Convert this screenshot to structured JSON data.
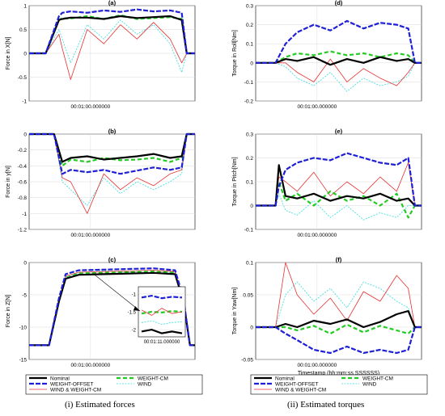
{
  "figure": {
    "captions": [
      "(i) Estimated forces",
      "(ii) Estimated torques"
    ],
    "x_tick_label": "00:01:00.000000",
    "x_label": "Timestamp (hh:mm:ss.SSSSSS)"
  },
  "legend": {
    "entries": [
      "Nominal",
      "WEIGHT-CM",
      "WEIGHT-OFFSET",
      "WIND",
      "WIND & WEIGHT-CM"
    ]
  },
  "colors": {
    "Nominal": "#000000",
    "WEIGHT-CM": "#22cc22",
    "WEIGHT-OFFSET": "#1f1fd6",
    "WIND": "#33dddd",
    "WIND & WEIGHT-CM": "#e83030"
  },
  "chart_data": [
    {
      "type": "line",
      "title": "(a)",
      "ylabel": "Force in X[N]",
      "xlabel": "",
      "ylim": [
        -1,
        1
      ],
      "yticks": [
        -1,
        -0.5,
        0,
        0.5,
        1
      ],
      "grid": true,
      "x": [
        0,
        0.1,
        0.18,
        0.2,
        0.25,
        0.35,
        0.45,
        0.55,
        0.65,
        0.75,
        0.85,
        0.92,
        0.95,
        1.0
      ],
      "series": [
        {
          "name": "Nominal",
          "values": [
            0,
            0,
            0.7,
            0.72,
            0.75,
            0.75,
            0.72,
            0.78,
            0.74,
            0.76,
            0.78,
            0.7,
            0,
            0
          ]
        },
        {
          "name": "WEIGHT-CM",
          "values": [
            0,
            0,
            0.7,
            0.74,
            0.73,
            0.78,
            0.72,
            0.8,
            0.72,
            0.74,
            0.76,
            0.72,
            0,
            0
          ]
        },
        {
          "name": "WEIGHT-OFFSET",
          "values": [
            0,
            0,
            0.78,
            0.85,
            0.88,
            0.85,
            0.9,
            0.87,
            0.92,
            0.88,
            0.9,
            0.85,
            0,
            0
          ]
        },
        {
          "name": "WIND",
          "values": [
            0,
            0,
            0.5,
            0.3,
            -0.2,
            0.6,
            0.3,
            0.7,
            0.4,
            0.6,
            0.2,
            -0.4,
            0,
            0
          ]
        },
        {
          "name": "WIND & WEIGHT-CM",
          "values": [
            0,
            0,
            0.4,
            0.1,
            -0.55,
            0.5,
            0.2,
            0.6,
            0.3,
            0.65,
            0.3,
            -0.2,
            0,
            0
          ]
        }
      ]
    },
    {
      "type": "line",
      "title": "(b)",
      "ylabel": "Force in y[N]",
      "xlabel": "",
      "ylim": [
        -1.2,
        0
      ],
      "yticks": [
        -1.2,
        -1,
        -0.8,
        -0.6,
        -0.4,
        -0.2,
        0
      ],
      "grid": true,
      "x": [
        0,
        0.15,
        0.2,
        0.25,
        0.35,
        0.45,
        0.55,
        0.65,
        0.75,
        0.85,
        0.92,
        0.95,
        1.0
      ],
      "series": [
        {
          "name": "Nominal",
          "values": [
            0,
            0,
            -0.35,
            -0.3,
            -0.28,
            -0.32,
            -0.3,
            -0.28,
            -0.25,
            -0.3,
            -0.28,
            0,
            0
          ]
        },
        {
          "name": "WEIGHT-CM",
          "values": [
            0,
            0,
            -0.4,
            -0.32,
            -0.35,
            -0.3,
            -0.33,
            -0.32,
            -0.3,
            -0.35,
            -0.3,
            0,
            0
          ]
        },
        {
          "name": "WEIGHT-OFFSET",
          "values": [
            0,
            0,
            -0.5,
            -0.45,
            -0.48,
            -0.45,
            -0.5,
            -0.46,
            -0.42,
            -0.45,
            -0.42,
            0,
            0
          ]
        },
        {
          "name": "WIND",
          "values": [
            0,
            0,
            -0.6,
            -0.7,
            -0.9,
            -0.55,
            -0.75,
            -0.6,
            -0.7,
            -0.6,
            -0.5,
            0,
            0
          ]
        },
        {
          "name": "WIND & WEIGHT-CM",
          "values": [
            0,
            0,
            -0.55,
            -0.6,
            -1.0,
            -0.5,
            -0.7,
            -0.55,
            -0.65,
            -0.5,
            -0.45,
            0,
            0
          ]
        }
      ]
    },
    {
      "type": "line",
      "title": "(c)",
      "ylabel": "Force in Z[N]",
      "xlabel": "",
      "ylim": [
        -15,
        0
      ],
      "yticks": [
        -15,
        -10,
        -5,
        0
      ],
      "grid": true,
      "x": [
        0,
        0.12,
        0.18,
        0.22,
        0.3,
        0.45,
        0.6,
        0.75,
        0.88,
        0.93,
        0.97,
        1.0
      ],
      "series": [
        {
          "name": "Nominal",
          "values": [
            -12.8,
            -12.8,
            -6,
            -2.5,
            -1.9,
            -1.8,
            -1.7,
            -1.6,
            -1.8,
            -6,
            -12.8,
            -12.8
          ]
        },
        {
          "name": "WEIGHT-CM",
          "values": [
            -12.8,
            -12.8,
            -6,
            -2.4,
            -1.7,
            -1.6,
            -1.5,
            -1.4,
            -1.6,
            -6,
            -12.8,
            -12.8
          ]
        },
        {
          "name": "WEIGHT-OFFSET",
          "values": [
            -12.8,
            -12.8,
            -5.5,
            -1.8,
            -1.2,
            -1.1,
            -1.0,
            -0.9,
            -1.2,
            -5.5,
            -12.8,
            -12.8
          ]
        },
        {
          "name": "WIND",
          "values": [
            -12.8,
            -12.8,
            -6,
            -2.2,
            -1.5,
            -1.3,
            -1.4,
            -1.2,
            -1.5,
            -6,
            -12.8,
            -12.8
          ]
        },
        {
          "name": "WIND & WEIGHT-CM",
          "values": [
            -12.8,
            -12.8,
            -6,
            -2.1,
            -1.5,
            -1.4,
            -1.3,
            -1.2,
            -1.4,
            -6,
            -12.8,
            -12.8
          ]
        }
      ],
      "inset": {
        "x_tick_label": "00:01:11.000000",
        "yticks": [
          -2,
          -1.5,
          -1
        ],
        "ylim": [
          -2.2,
          -0.8
        ],
        "series": [
          {
            "name": "Nominal",
            "values": [
              -2.05,
              -2.0,
              -2.1,
              -2.05,
              -2.1
            ]
          },
          {
            "name": "WEIGHT-CM",
            "values": [
              -1.55,
              -1.5,
              -1.52,
              -1.48,
              -1.5
            ]
          },
          {
            "name": "WEIGHT-OFFSET",
            "values": [
              -1.1,
              -1.05,
              -1.12,
              -1.08,
              -1.1
            ]
          },
          {
            "name": "WIND",
            "values": [
              -1.8,
              -1.75,
              -1.85,
              -1.8,
              -1.78
            ]
          },
          {
            "name": "WIND & WEIGHT-CM",
            "values": [
              -1.45,
              -1.6,
              -1.4,
              -1.55,
              -1.5
            ]
          }
        ]
      }
    },
    {
      "type": "line",
      "title": "(d)",
      "ylabel": "Torque in Roll[Nm]",
      "xlabel": "",
      "ylim": [
        -0.2,
        0.3
      ],
      "yticks": [
        -0.2,
        -0.1,
        0,
        0.1,
        0.2,
        0.3
      ],
      "grid": true,
      "x": [
        0,
        0.12,
        0.18,
        0.25,
        0.35,
        0.45,
        0.55,
        0.65,
        0.75,
        0.85,
        0.92,
        0.96,
        1.0
      ],
      "series": [
        {
          "name": "Nominal",
          "values": [
            0,
            0,
            0.02,
            0.01,
            0.03,
            -0.01,
            0.02,
            0.0,
            0.03,
            0.01,
            0.02,
            0,
            0
          ]
        },
        {
          "name": "WEIGHT-CM",
          "values": [
            0,
            0,
            0.03,
            0.05,
            0.04,
            0.06,
            0.04,
            0.05,
            0.03,
            0.05,
            0.04,
            0,
            0
          ]
        },
        {
          "name": "WEIGHT-OFFSET",
          "values": [
            0,
            0,
            0.1,
            0.16,
            0.2,
            0.17,
            0.22,
            0.18,
            0.21,
            0.2,
            0.18,
            0,
            0
          ]
        },
        {
          "name": "WIND",
          "values": [
            0,
            0,
            -0.02,
            -0.08,
            -0.12,
            -0.05,
            -0.15,
            -0.08,
            -0.12,
            -0.1,
            -0.07,
            0,
            0
          ]
        },
        {
          "name": "WIND & WEIGHT-CM",
          "values": [
            0,
            0,
            0.0,
            -0.05,
            -0.1,
            0.02,
            -0.1,
            -0.03,
            -0.08,
            -0.12,
            -0.05,
            0,
            0
          ]
        }
      ]
    },
    {
      "type": "line",
      "title": "(e)",
      "ylabel": "Torque in Pitch[Nm]",
      "xlabel": "",
      "ylim": [
        -0.1,
        0.3
      ],
      "yticks": [
        -0.1,
        0,
        0.1,
        0.2,
        0.3
      ],
      "grid": true,
      "x": [
        0,
        0.12,
        0.14,
        0.18,
        0.25,
        0.35,
        0.45,
        0.55,
        0.65,
        0.75,
        0.85,
        0.92,
        0.96,
        1.0
      ],
      "series": [
        {
          "name": "Nominal",
          "values": [
            0,
            0,
            0.17,
            0.04,
            0.03,
            0.05,
            0.02,
            0.04,
            0.03,
            0.05,
            0.02,
            0.03,
            0,
            0
          ]
        },
        {
          "name": "WEIGHT-CM",
          "values": [
            0,
            0,
            0.1,
            0.02,
            0.05,
            0.0,
            0.06,
            0.02,
            0.04,
            0.0,
            0.05,
            -0.05,
            0,
            0
          ]
        },
        {
          "name": "WEIGHT-OFFSET",
          "values": [
            0,
            0,
            0.08,
            0.15,
            0.18,
            0.2,
            0.19,
            0.22,
            0.2,
            0.18,
            0.17,
            0.2,
            0,
            0
          ]
        },
        {
          "name": "WIND",
          "values": [
            0,
            0,
            0.05,
            -0.02,
            -0.04,
            0.02,
            -0.05,
            0.0,
            -0.06,
            -0.03,
            -0.05,
            0.0,
            0,
            0
          ]
        },
        {
          "name": "WIND & WEIGHT-CM",
          "values": [
            0,
            0,
            0.12,
            0.1,
            0.06,
            0.14,
            0.04,
            0.1,
            0.05,
            0.12,
            0.06,
            0.18,
            0,
            0
          ]
        }
      ]
    },
    {
      "type": "line",
      "title": "(f)",
      "ylabel": "Torque in Yaw[Nm]",
      "xlabel": "Timestamp (hh:mm:ss.SSSSSS)",
      "ylim": [
        -0.05,
        0.1
      ],
      "yticks": [
        -0.05,
        0,
        0.05,
        0.1
      ],
      "grid": true,
      "x": [
        0,
        0.12,
        0.18,
        0.25,
        0.35,
        0.45,
        0.55,
        0.65,
        0.75,
        0.85,
        0.92,
        0.96,
        1.0
      ],
      "series": [
        {
          "name": "Nominal",
          "values": [
            0,
            0,
            0.005,
            0.0,
            0.01,
            0.005,
            0.012,
            0.0,
            0.008,
            0.02,
            0.025,
            0,
            0
          ]
        },
        {
          "name": "WEIGHT-CM",
          "values": [
            0,
            0,
            0.0,
            -0.005,
            0.002,
            -0.01,
            0.004,
            -0.008,
            0.002,
            -0.005,
            -0.01,
            0,
            0
          ]
        },
        {
          "name": "WEIGHT-OFFSET",
          "values": [
            0,
            0,
            -0.01,
            -0.02,
            -0.035,
            -0.04,
            -0.03,
            -0.04,
            -0.035,
            -0.04,
            -0.035,
            0,
            0
          ]
        },
        {
          "name": "WIND",
          "values": [
            0,
            0,
            0.05,
            0.07,
            0.04,
            0.06,
            0.03,
            0.07,
            0.06,
            0.04,
            0.03,
            0,
            0
          ]
        },
        {
          "name": "WIND & WEIGHT-CM",
          "values": [
            0,
            0,
            0.1,
            0.05,
            0.02,
            0.045,
            0.01,
            0.055,
            0.04,
            0.08,
            0.06,
            0,
            0
          ]
        }
      ]
    }
  ]
}
